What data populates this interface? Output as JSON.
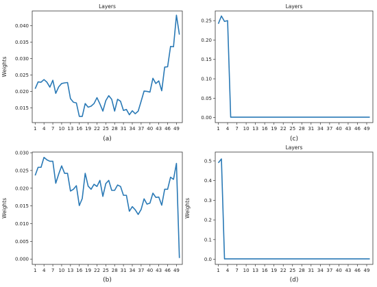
{
  "chart_data": [
    {
      "id": "a",
      "type": "line",
      "title": "Layers",
      "caption": "(a)",
      "xlabel": "",
      "ylabel": "Weights",
      "xlim": [
        0,
        51
      ],
      "ylim": [
        0.0105,
        0.0445
      ],
      "xticks": [
        1,
        4,
        7,
        10,
        13,
        16,
        19,
        22,
        25,
        28,
        31,
        34,
        37,
        40,
        43,
        46,
        49
      ],
      "yticks": [
        0.015,
        0.02,
        0.025,
        0.03,
        0.035,
        0.04
      ],
      "ytick_labels": [
        "0.015",
        "0.020",
        "0.025",
        "0.030",
        "0.035",
        "0.040"
      ],
      "color": "#2878b5",
      "x": [
        1,
        2,
        3,
        4,
        5,
        6,
        7,
        8,
        9,
        10,
        11,
        12,
        13,
        14,
        15,
        16,
        17,
        18,
        19,
        20,
        21,
        22,
        23,
        24,
        25,
        26,
        27,
        28,
        29,
        30,
        31,
        32,
        33,
        34,
        35,
        36,
        37,
        38,
        39,
        40,
        41,
        42,
        43,
        44,
        45,
        46,
        47,
        48,
        49,
        50
      ],
      "values": [
        0.0208,
        0.0229,
        0.0228,
        0.0236,
        0.0228,
        0.0213,
        0.0234,
        0.0194,
        0.0214,
        0.0224,
        0.0226,
        0.0227,
        0.0178,
        0.0167,
        0.0165,
        0.0124,
        0.0124,
        0.0163,
        0.0152,
        0.0155,
        0.0163,
        0.0181,
        0.0162,
        0.014,
        0.0172,
        0.0187,
        0.0176,
        0.014,
        0.0176,
        0.017,
        0.0142,
        0.0145,
        0.0129,
        0.0141,
        0.0132,
        0.014,
        0.017,
        0.0201,
        0.02,
        0.0198,
        0.024,
        0.0224,
        0.0232,
        0.0202,
        0.0274,
        0.0275,
        0.0337,
        0.0336,
        0.0432,
        0.0373
      ]
    },
    {
      "id": "c",
      "type": "line",
      "title": "Layers",
      "caption": "(c)",
      "xlabel": "",
      "ylabel": "",
      "xlim": [
        0,
        51
      ],
      "ylim": [
        -0.013,
        0.275
      ],
      "xticks": [
        1,
        4,
        7,
        10,
        13,
        16,
        19,
        22,
        25,
        28,
        31,
        34,
        37,
        40,
        43,
        46,
        49
      ],
      "yticks": [
        0,
        0.05,
        0.1,
        0.15,
        0.2,
        0.25
      ],
      "ytick_labels": [
        "0.00",
        "0.05",
        "0.10",
        "0.15",
        "0.20",
        "0.25"
      ],
      "color": "#2878b5",
      "x": [
        1,
        2,
        3,
        4,
        5,
        6,
        7,
        8,
        9,
        10,
        11,
        12,
        13,
        14,
        15,
        16,
        17,
        18,
        19,
        20,
        21,
        22,
        23,
        24,
        25,
        26,
        27,
        28,
        29,
        30,
        31,
        32,
        33,
        34,
        35,
        36,
        37,
        38,
        39,
        40,
        41,
        42,
        43,
        44,
        45,
        46,
        47,
        48,
        49,
        50
      ],
      "values": [
        0.242,
        0.262,
        0.248,
        0.25,
        0.001,
        0.001,
        0.001,
        0.001,
        0.001,
        0.001,
        0.001,
        0.001,
        0.001,
        0.001,
        0.001,
        0.001,
        0.001,
        0.001,
        0.001,
        0.001,
        0.001,
        0.001,
        0.001,
        0.001,
        0.001,
        0.001,
        0.001,
        0.001,
        0.001,
        0.001,
        0.001,
        0.001,
        0.001,
        0.001,
        0.001,
        0.001,
        0.001,
        0.001,
        0.001,
        0.001,
        0.001,
        0.001,
        0.001,
        0.001,
        0.001,
        0.001,
        0.001,
        0.001,
        0.001,
        0.001
      ]
    },
    {
      "id": "b",
      "type": "line",
      "title": "",
      "caption": "(b)",
      "xlabel": "",
      "ylabel": "Weights",
      "xlim": [
        0,
        51
      ],
      "ylim": [
        -0.0015,
        0.0302
      ],
      "xticks": [
        1,
        4,
        7,
        10,
        13,
        16,
        19,
        22,
        25,
        28,
        31,
        34,
        37,
        40,
        43,
        46,
        49
      ],
      "yticks": [
        0,
        0.005,
        0.01,
        0.015,
        0.02,
        0.025,
        0.03
      ],
      "ytick_labels": [
        "0.000",
        "0.005",
        "0.010",
        "0.015",
        "0.020",
        "0.025",
        "0.030"
      ],
      "color": "#2878b5",
      "x": [
        1,
        2,
        3,
        4,
        5,
        6,
        7,
        8,
        9,
        10,
        11,
        12,
        13,
        14,
        15,
        16,
        17,
        18,
        19,
        20,
        21,
        22,
        23,
        24,
        25,
        26,
        27,
        28,
        29,
        30,
        31,
        32,
        33,
        34,
        35,
        36,
        37,
        38,
        39,
        40,
        41,
        42,
        43,
        44,
        45,
        46,
        47,
        48,
        49,
        50
      ],
      "values": [
        0.0236,
        0.0259,
        0.0259,
        0.0287,
        0.028,
        0.0276,
        0.0276,
        0.0214,
        0.024,
        0.0263,
        0.0242,
        0.0242,
        0.0192,
        0.0197,
        0.0207,
        0.0151,
        0.0171,
        0.0242,
        0.0206,
        0.0197,
        0.0211,
        0.0205,
        0.0222,
        0.0177,
        0.0213,
        0.0222,
        0.0194,
        0.0194,
        0.0209,
        0.0205,
        0.018,
        0.018,
        0.0135,
        0.0148,
        0.0139,
        0.0126,
        0.014,
        0.017,
        0.0155,
        0.0158,
        0.0186,
        0.0174,
        0.0175,
        0.0152,
        0.0197,
        0.0197,
        0.0231,
        0.0225,
        0.027,
        0.0003
      ]
    },
    {
      "id": "d",
      "type": "line",
      "title": "Layers",
      "caption": "(d)",
      "xlabel": "",
      "ylabel": "Weights",
      "xlim": [
        0,
        51
      ],
      "ylim": [
        -0.026,
        0.545
      ],
      "xticks": [
        1,
        4,
        7,
        10,
        13,
        16,
        19,
        22,
        25,
        28,
        31,
        34,
        37,
        40,
        43,
        46,
        49
      ],
      "yticks": [
        0,
        0.1,
        0.2,
        0.3,
        0.4,
        0.5
      ],
      "ytick_labels": [
        "0.0",
        "0.1",
        "0.2",
        "0.3",
        "0.4",
        "0.5"
      ],
      "color": "#2878b5",
      "x": [
        1,
        2,
        3,
        4,
        5,
        6,
        7,
        8,
        9,
        10,
        11,
        12,
        13,
        14,
        15,
        16,
        17,
        18,
        19,
        20,
        21,
        22,
        23,
        24,
        25,
        26,
        27,
        28,
        29,
        30,
        31,
        32,
        33,
        34,
        35,
        36,
        37,
        38,
        39,
        40,
        41,
        42,
        43,
        44,
        45,
        46,
        47,
        48,
        49,
        50
      ],
      "values": [
        0.49,
        0.51,
        0.002,
        0.002,
        0.002,
        0.002,
        0.002,
        0.002,
        0.002,
        0.002,
        0.002,
        0.002,
        0.002,
        0.002,
        0.002,
        0.002,
        0.002,
        0.002,
        0.002,
        0.002,
        0.002,
        0.002,
        0.002,
        0.002,
        0.002,
        0.002,
        0.002,
        0.002,
        0.002,
        0.002,
        0.002,
        0.002,
        0.002,
        0.002,
        0.002,
        0.002,
        0.002,
        0.002,
        0.002,
        0.002,
        0.002,
        0.002,
        0.002,
        0.002,
        0.002,
        0.002,
        0.002,
        0.002,
        0.002,
        0.002
      ]
    }
  ]
}
